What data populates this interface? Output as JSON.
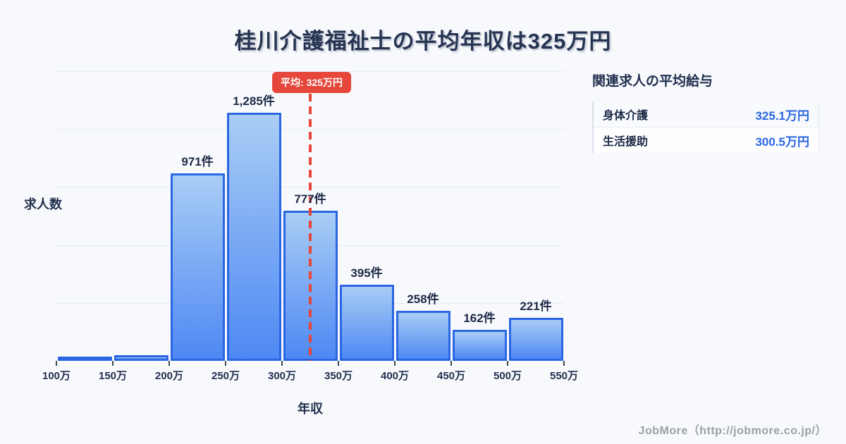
{
  "page": {
    "title": "桂川介護福祉士の平均年収は325万円",
    "footer": "JobMore（http://jobmore.co.jp/）"
  },
  "chart_data": {
    "type": "bar",
    "title": "桂川介護福祉士の平均年収は325万円",
    "xlabel": "年収",
    "ylabel": "求人数",
    "x_tick_labels": [
      "100万",
      "150万",
      "200万",
      "250万",
      "300万",
      "350万",
      "400万",
      "450万",
      "500万",
      "550万"
    ],
    "bin_edges": [
      100,
      150,
      200,
      250,
      300,
      350,
      400,
      450,
      500,
      550
    ],
    "values": [
      10,
      30,
      971,
      1285,
      777,
      395,
      258,
      162,
      221
    ],
    "bar_labels": [
      "",
      "",
      "971件",
      "1,285件",
      "777件",
      "395件",
      "258件",
      "162件",
      "221件"
    ],
    "ylim": [
      0,
      1500
    ],
    "grid_step": 300,
    "grid": true,
    "average_line": {
      "value": 325,
      "label": "平均: 325万円",
      "color": "#e6473a"
    },
    "bar_fill_top": "#a9cdf5",
    "bar_fill_bottom": "#4e88f3",
    "bar_border": "#2b66e2"
  },
  "side_panel": {
    "heading": "関連求人の平均給与",
    "rows": [
      {
        "label": "身体介護",
        "value": "325.1万円"
      },
      {
        "label": "生活援助",
        "value": "300.5万円"
      }
    ],
    "value_color": "#2a66e0"
  }
}
